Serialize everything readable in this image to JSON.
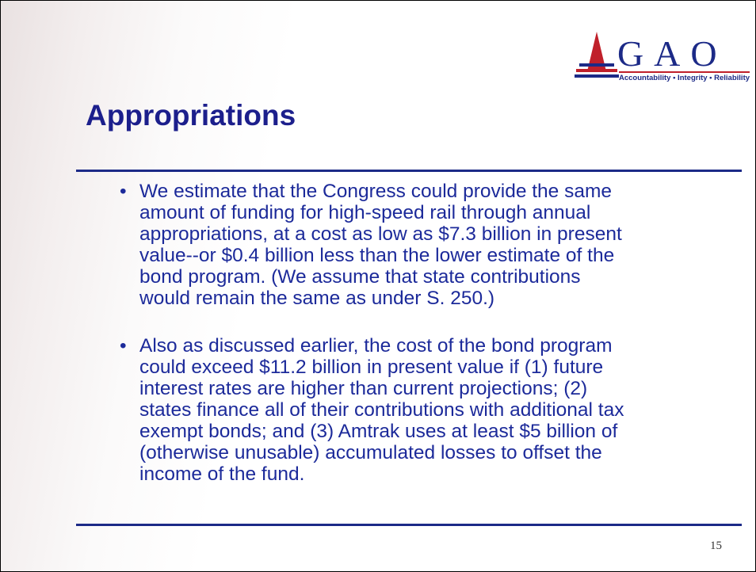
{
  "logo": {
    "name": "G A O",
    "tagline": "Accountability • Integrity • Reliability"
  },
  "title": "Appropriations",
  "bullets": [
    [
      "We estimate that the Congress could provide the same",
      "amount of funding for high-speed rail through annual",
      "appropriations, at a cost as low as $7.3 billion in present",
      "value--or $0.4 billion less than the lower estimate of the",
      "bond program.  (We assume that state contributions",
      "would remain the same as under S. 250.)"
    ],
    [
      "Also as discussed earlier, the cost of the bond program",
      "could exceed $11.2 billion in present value if (1) future",
      "interest rates are higher than current projections; (2)",
      "states finance all of their contributions with additional tax",
      "exempt bonds; and (3) Amtrak uses at least $5 billion of",
      "(otherwise unusable) accumulated losses to offset the",
      "income of the fund."
    ]
  ],
  "page_number": "15"
}
